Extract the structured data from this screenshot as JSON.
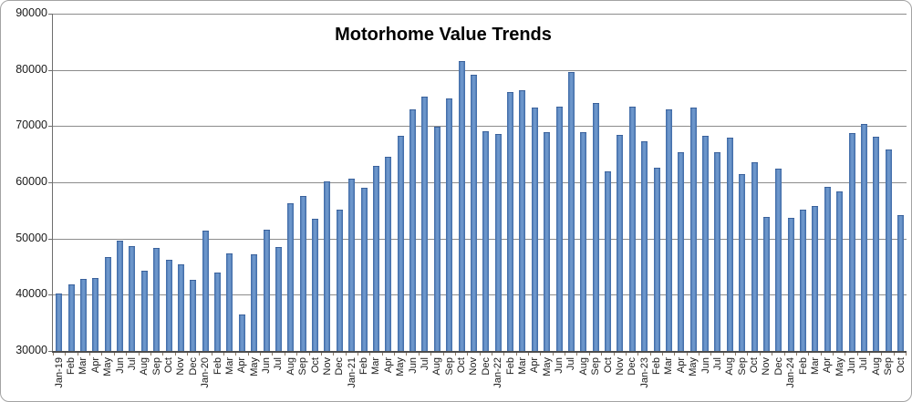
{
  "chart_data": {
    "type": "bar",
    "title": "Motorhome Value Trends",
    "xlabel": "",
    "ylabel": "",
    "ylim": [
      30000,
      90000
    ],
    "ytick_interval": 10000,
    "ytick_labels_top_to_bottom": [
      "90000",
      "80000",
      "70000",
      "60000",
      "50000",
      "40000",
      "30000"
    ],
    "grid": true,
    "legend": "none",
    "bar_color": "#4f81bd",
    "bar_edge_color": "#3a619b",
    "gridline_color": "#8c8c8c",
    "axis_color": "#4d4d4d",
    "text_color": "#1a1a1a",
    "categories": [
      "Jan-19",
      "Feb",
      "Mar",
      "Apr",
      "May",
      "Jun",
      "Jul",
      "Aug",
      "Sep",
      "Oct",
      "Nov",
      "Dec",
      "Jan-20",
      "Feb",
      "Mar",
      "Apr",
      "May",
      "Jun",
      "Jul",
      "Aug",
      "Sep",
      "Oct",
      "Nov",
      "Dec",
      "Jan-21",
      "Feb",
      "Mar",
      "Apr",
      "May",
      "Jun",
      "Jul",
      "Aug",
      "Sep",
      "Oct",
      "Nov",
      "Dec",
      "Jan-22",
      "Feb",
      "Mar",
      "Apr",
      "May",
      "Jun",
      "Jul",
      "Aug",
      "Sep",
      "Oct",
      "Nov",
      "Dec",
      "Jan-23",
      "Feb",
      "Mar",
      "Apr",
      "May",
      "Jun",
      "Jul",
      "Aug",
      "Sep",
      "Oct",
      "Nov",
      "Dec",
      "Jan-24",
      "Feb",
      "Mar",
      "Apr",
      "May",
      "Jun",
      "Jul",
      "Aug",
      "Sep",
      "Oct"
    ],
    "values": [
      40200,
      41900,
      42800,
      42900,
      46700,
      49700,
      48600,
      44200,
      48300,
      46200,
      45400,
      42600,
      51400,
      43900,
      47400,
      36500,
      47200,
      51500,
      48500,
      56200,
      57600,
      53500,
      60200,
      55100,
      60700,
      59100,
      62900,
      64500,
      68300,
      72900,
      75200,
      69900,
      74900,
      81500,
      79100,
      69100,
      68600,
      76100,
      76300,
      73300,
      68900,
      73500,
      79600,
      69000,
      74100,
      61900,
      68500,
      73400,
      67300,
      62600,
      73000,
      65400,
      73300,
      68300,
      65300,
      68000,
      61500,
      63600,
      53900,
      62500,
      53600,
      55100,
      55800,
      59200,
      58400,
      68700,
      70300,
      68100,
      65800,
      54100
    ]
  }
}
